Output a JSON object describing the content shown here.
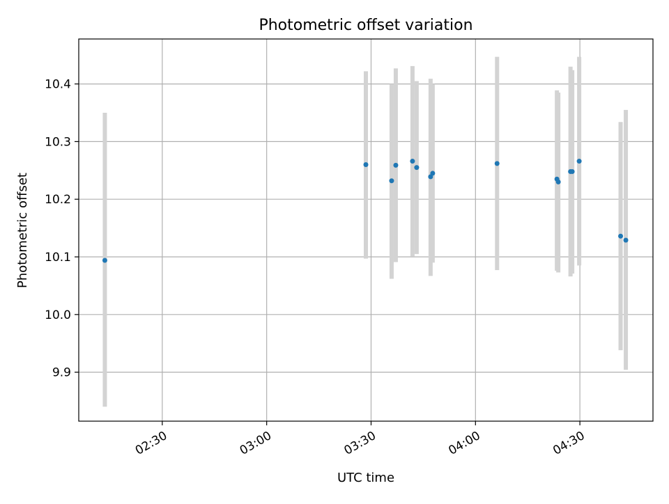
{
  "chart_data": {
    "type": "scatter",
    "title": "Photometric offset variation",
    "xlabel": "UTC time",
    "ylabel": "Photometric offset",
    "x_axis": "time",
    "xlim": [
      "02:06",
      "04:51"
    ],
    "ylim": [
      9.815,
      10.478
    ],
    "x_ticks": [
      "02:30",
      "03:00",
      "03:30",
      "04:00",
      "04:30"
    ],
    "y_ticks": [
      9.9,
      10.0,
      10.1,
      10.2,
      10.3,
      10.4
    ],
    "grid": true,
    "colors": {
      "point": "#1f77b4",
      "errorbar": "#d3d3d3",
      "grid": "#b0b0b0"
    },
    "points": [
      {
        "x": "02:13:30",
        "y": 10.094,
        "low": 9.84,
        "high": 10.35
      },
      {
        "x": "03:28:30",
        "y": 10.26,
        "low": 10.097,
        "high": 10.422
      },
      {
        "x": "03:35:54",
        "y": 10.232,
        "low": 10.062,
        "high": 10.4
      },
      {
        "x": "03:37:06",
        "y": 10.259,
        "low": 10.091,
        "high": 10.427
      },
      {
        "x": "03:41:54",
        "y": 10.266,
        "low": 10.101,
        "high": 10.431
      },
      {
        "x": "03:43:06",
        "y": 10.255,
        "low": 10.105,
        "high": 10.405
      },
      {
        "x": "03:47:06",
        "y": 10.239,
        "low": 10.067,
        "high": 10.409
      },
      {
        "x": "03:47:42",
        "y": 10.245,
        "low": 10.09,
        "high": 10.4
      },
      {
        "x": "04:06:12",
        "y": 10.262,
        "low": 10.077,
        "high": 10.447
      },
      {
        "x": "04:23:24",
        "y": 10.235,
        "low": 10.076,
        "high": 10.389
      },
      {
        "x": "04:23:48",
        "y": 10.23,
        "low": 10.073,
        "high": 10.385
      },
      {
        "x": "04:27:18",
        "y": 10.248,
        "low": 10.066,
        "high": 10.43
      },
      {
        "x": "04:27:48",
        "y": 10.248,
        "low": 10.071,
        "high": 10.424
      },
      {
        "x": "04:29:48",
        "y": 10.266,
        "low": 10.085,
        "high": 10.447
      },
      {
        "x": "04:41:42",
        "y": 10.136,
        "low": 9.938,
        "high": 10.334
      },
      {
        "x": "04:43:12",
        "y": 10.129,
        "low": 9.904,
        "high": 10.355
      }
    ]
  }
}
